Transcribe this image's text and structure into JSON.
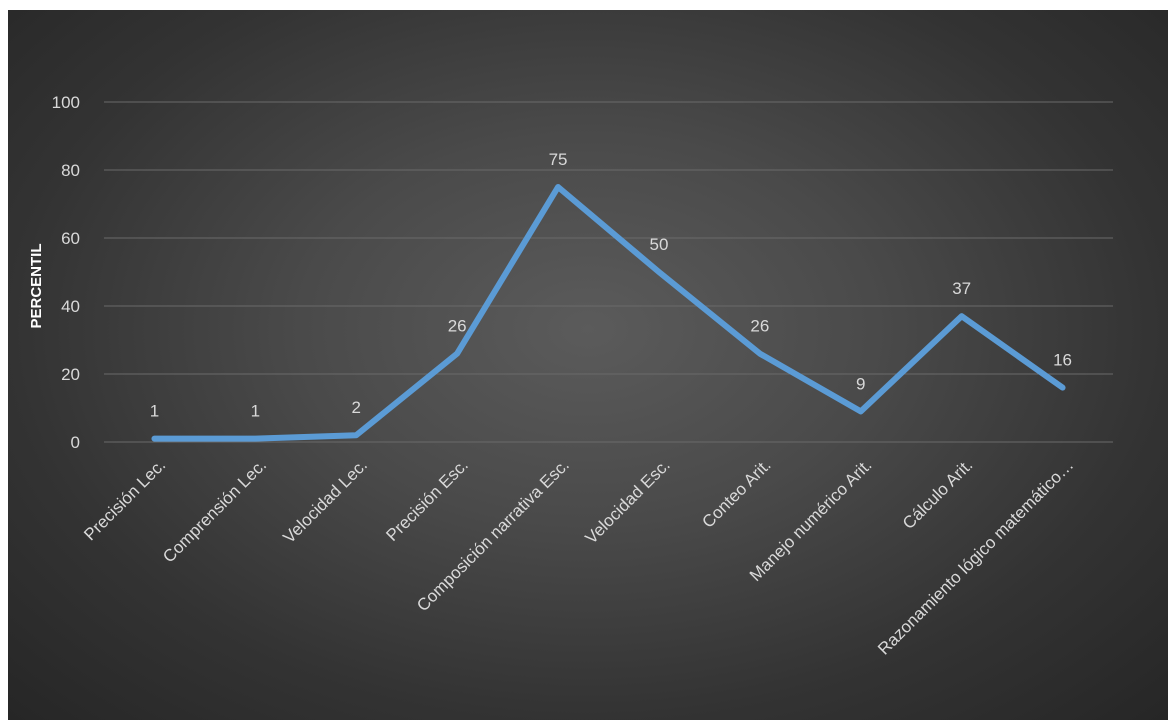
{
  "chart_data": {
    "type": "line",
    "title": "",
    "xlabel": "",
    "ylabel": "PERCENTIL",
    "ylim": [
      0,
      100
    ],
    "yticks": [
      "0",
      "20",
      "40",
      "60",
      "80",
      "100"
    ],
    "grid": true,
    "categories": [
      "Precisión Lec.",
      "Comprensión Lec.",
      "Velocidad Lec.",
      "Precisión Esc.",
      "Composición narrativa Esc.",
      "Velocidad Esc.",
      "Conteo Arit.",
      "Manejo numérico Arit.",
      "Cálculo Arit.",
      "Razonamiento lógico matemático…"
    ],
    "series": [
      {
        "values": [
          1,
          1,
          2,
          26,
          75,
          50,
          26,
          9,
          37,
          16
        ],
        "data_labels": [
          "1",
          "1",
          "2",
          "26",
          "75",
          "50",
          "26",
          "9",
          "37",
          "16"
        ],
        "color": "#5b9bd5"
      }
    ]
  }
}
